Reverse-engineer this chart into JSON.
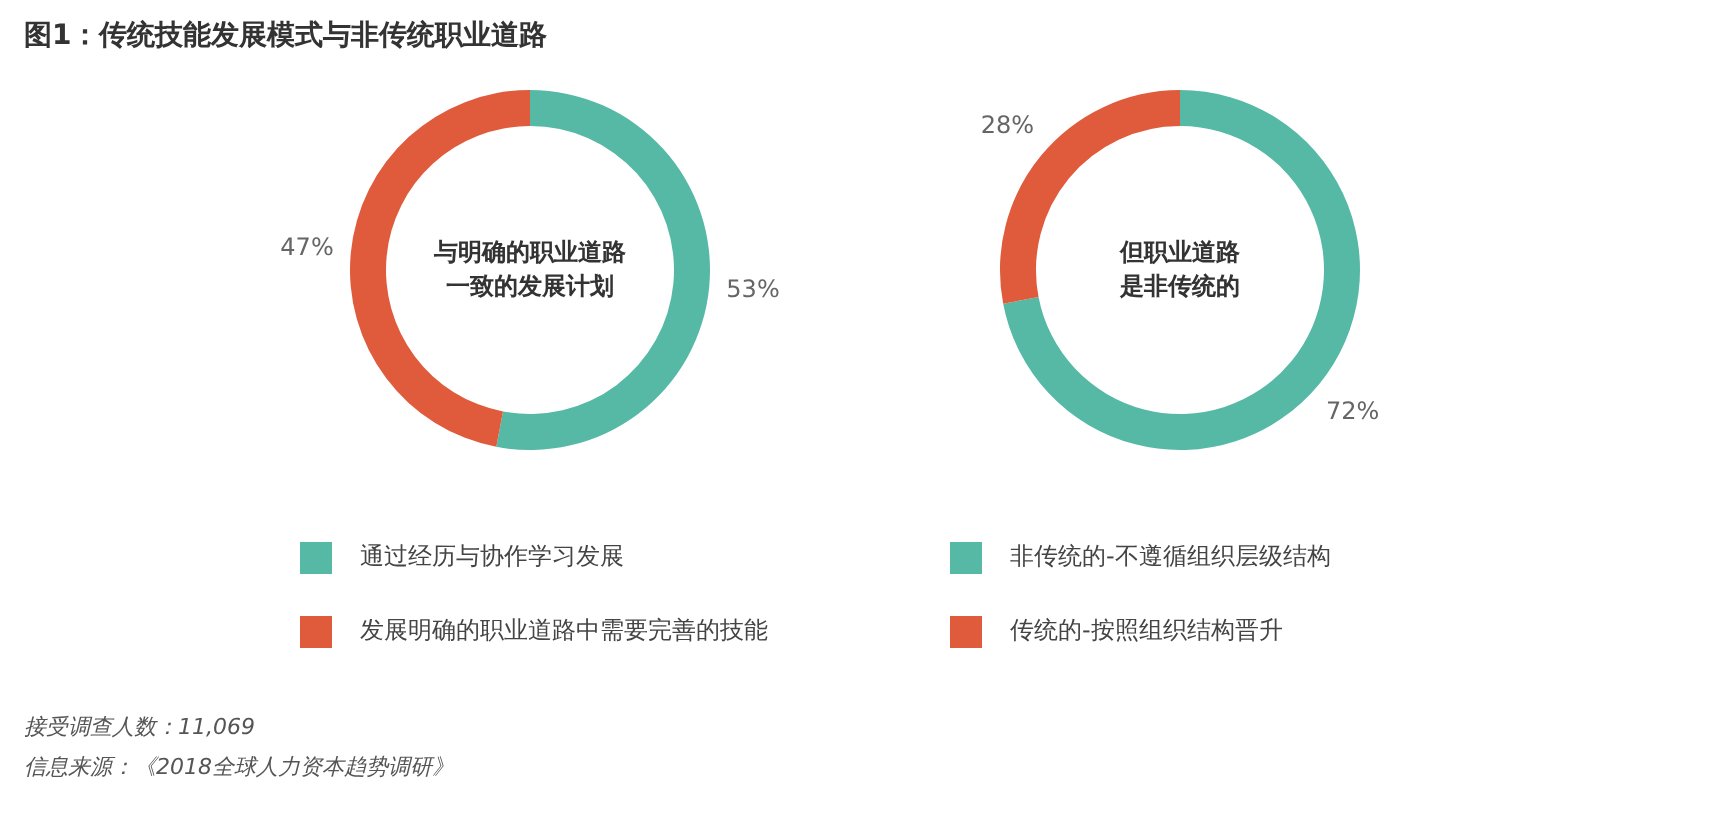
{
  "chart_data": [
    {
      "type": "donut",
      "title": "图1：传统技能发展模式与非传统职业道路",
      "categories": [
        "通过经历与协作学习发展",
        "发展明确的职业道路中需要完善的技能"
      ],
      "values": [
        53,
        47
      ],
      "colors": [
        "#55b9a5",
        "#e05a3c"
      ],
      "value_labels": [
        "53%",
        "47%"
      ],
      "legend": "bottom",
      "annotations": [
        "与明确的职业道路一致的发展计划",
        "接受调查人数：11,069",
        "信息来源：《2018全球人力资本趋势调研》"
      ]
    },
    {
      "type": "donut",
      "categories": [
        "非传统的-不遵循组织层级结构",
        "传统的-按照组织结构晋升"
      ],
      "values": [
        72,
        28
      ],
      "colors": [
        "#55b9a5",
        "#e05a3c"
      ],
      "value_labels": [
        "72%",
        "28%"
      ],
      "legend": "bottom",
      "annotations": [
        "但职业道路是非传统的"
      ]
    }
  ]
}
